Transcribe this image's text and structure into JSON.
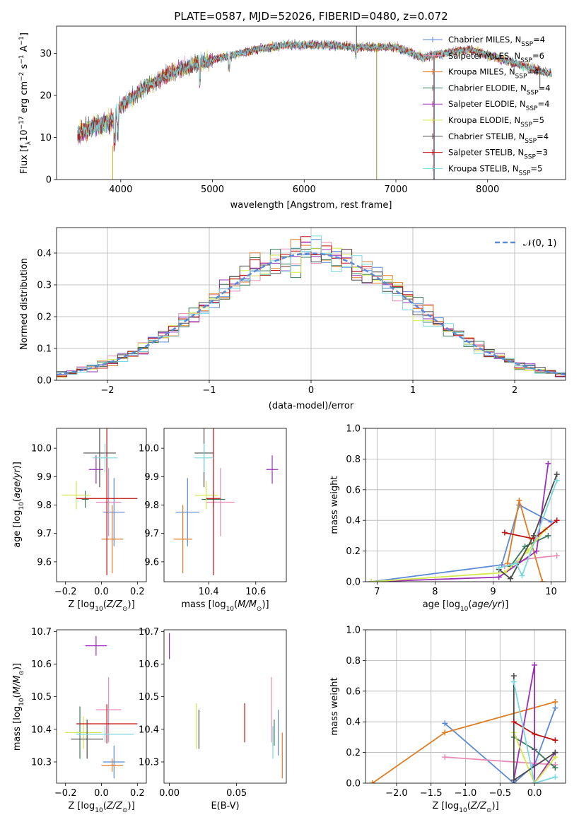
{
  "chart_data": [
    {
      "id": "spectrum",
      "type": "line",
      "title": "PLATE=0587, MJD=52026, FIBERID=0480, z=0.072",
      "xlabel": "wavelength [Angstrom, rest frame]",
      "ylabel": "Flux [fλ10⁻¹⁷ erg cm⁻² s⁻¹ A⁻¹]",
      "xlim": [
        3300,
        8850
      ],
      "ylim": [
        0,
        36.5
      ],
      "xticks": [
        4000,
        5000,
        6000,
        7000,
        8000
      ],
      "yticks": [
        0,
        10,
        20,
        30
      ],
      "legend_position": "top-right",
      "continuum": [
        [
          3530,
          11
        ],
        [
          3700,
          12.5
        ],
        [
          3900,
          14
        ],
        [
          4000,
          17.5
        ],
        [
          4200,
          21
        ],
        [
          4500,
          25
        ],
        [
          4800,
          27.5
        ],
        [
          5000,
          28.5
        ],
        [
          5200,
          29.5
        ],
        [
          5500,
          31
        ],
        [
          5800,
          32
        ],
        [
          6000,
          32
        ],
        [
          6300,
          32
        ],
        [
          6600,
          31.5
        ],
        [
          7000,
          31.5
        ],
        [
          7300,
          29
        ],
        [
          7500,
          30
        ],
        [
          7800,
          31
        ],
        [
          8100,
          29
        ],
        [
          8400,
          27
        ],
        [
          8700,
          25
        ]
      ],
      "series": [
        {
          "name": "Chabrier MILES, N_SSP=4",
          "color": "#5b8ad6"
        },
        {
          "name": "Salpeter MILES, N_SSP=6",
          "color": "#e88ab5"
        },
        {
          "name": "Kroupa MILES, N_SSP=4",
          "color": "#e07b20"
        },
        {
          "name": "Chabrier ELODIE, N_SSP=4",
          "color": "#3a7a5a"
        },
        {
          "name": "Salpeter ELODIE, N_SSP=4",
          "color": "#9a30b8"
        },
        {
          "name": "Kroupa ELODIE, N_SSP=5",
          "color": "#d4e84a"
        },
        {
          "name": "Chabrier STELIB, N_SSP=4",
          "color": "#4a4a4a"
        },
        {
          "name": "Salpeter STELIB, N_SSP=3",
          "color": "#c01010"
        },
        {
          "name": "Kroupa STELIB, N_SSP=5",
          "color": "#7ad8e0"
        }
      ]
    },
    {
      "id": "residuals",
      "type": "line",
      "xlabel": "(data-model)/error",
      "ylabel": "Normed distribution",
      "xlim": [
        -2.5,
        2.5
      ],
      "ylim": [
        0,
        0.48
      ],
      "xticks": [
        -2,
        -1,
        0,
        1,
        2
      ],
      "yticks": [
        0.0,
        0.1,
        0.2,
        0.3,
        0.4
      ],
      "grid": true,
      "legend_position": "top-right",
      "gaussian": {
        "name": "N(0,1)",
        "mean": 0,
        "sigma": 1,
        "color": "#5b8ad6"
      }
    },
    {
      "id": "age-vs-Z",
      "type": "scatter",
      "xlabel": "Z [log10(Z/Z⊙)]",
      "ylabel": "age [log10(age/yr)]",
      "xlim": [
        -0.25,
        0.25
      ],
      "ylim": [
        9.53,
        10.07
      ],
      "xticks": [
        -0.2,
        0.0,
        0.2
      ],
      "yticks": [
        9.6,
        9.7,
        9.8,
        9.9,
        10.0
      ],
      "points": [
        {
          "x": 0.07,
          "y": 9.775,
          "xerr": 0.06,
          "yerr": 0.12,
          "color": "#5b8ad6"
        },
        {
          "x": 0.04,
          "y": 9.81,
          "xerr": 0.07,
          "yerr": 0.12,
          "color": "#e88ab5"
        },
        {
          "x": 0.06,
          "y": 9.68,
          "xerr": 0.06,
          "yerr": 0.12,
          "color": "#e07b20"
        },
        {
          "x": -0.09,
          "y": 9.82,
          "xerr": 0.02,
          "yerr": 0.03,
          "color": "#3a7a5a"
        },
        {
          "x": -0.03,
          "y": 9.925,
          "xerr": 0.04,
          "yerr": 0.05,
          "color": "#9a30b8"
        },
        {
          "x": -0.14,
          "y": 9.835,
          "xerr": 0.08,
          "yerr": 0.05,
          "color": "#d4e84a"
        },
        {
          "x": -0.01,
          "y": 9.983,
          "xerr": 0.09,
          "yerr": 0.12,
          "color": "#4a4a4a"
        },
        {
          "x": 0.03,
          "y": 9.823,
          "xerr": 0.17,
          "yerr": 0.27,
          "color": "#c01010"
        },
        {
          "x": 0.02,
          "y": 9.966,
          "xerr": 0.07,
          "yerr": 0.05,
          "color": "#7ad8e0"
        }
      ]
    },
    {
      "id": "age-vs-mass",
      "type": "scatter",
      "xlabel": "mass [log10(M/M⊙)]",
      "ylabel": "",
      "xlim": [
        10.21,
        10.73
      ],
      "ylim": [
        9.53,
        10.07
      ],
      "xticks": [
        10.4,
        10.6
      ],
      "yticks": [
        9.6,
        9.7,
        9.8,
        9.9,
        10.0
      ],
      "points": [
        {
          "x": 10.31,
          "y": 9.775,
          "xerr": 0.05,
          "yerr": 0.12,
          "color": "#5b8ad6"
        },
        {
          "x": 10.45,
          "y": 9.81,
          "xerr": 0.06,
          "yerr": 0.12,
          "color": "#e88ab5"
        },
        {
          "x": 10.29,
          "y": 9.68,
          "xerr": 0.04,
          "yerr": 0.12,
          "color": "#e07b20"
        },
        {
          "x": 10.42,
          "y": 9.82,
          "xerr": 0.05,
          "yerr": 0.03,
          "color": "#3a7a5a"
        },
        {
          "x": 10.67,
          "y": 9.925,
          "xerr": 0.025,
          "yerr": 0.05,
          "color": "#9a30b8"
        },
        {
          "x": 10.39,
          "y": 9.835,
          "xerr": 0.05,
          "yerr": 0.05,
          "color": "#d4e84a"
        },
        {
          "x": 10.38,
          "y": 9.983,
          "xerr": 0.04,
          "yerr": 0.12,
          "color": "#4a4a4a"
        },
        {
          "x": 10.42,
          "y": 9.823,
          "xerr": 0.03,
          "yerr": 0.27,
          "color": "#c01010"
        },
        {
          "x": 10.38,
          "y": 9.966,
          "xerr": 0.04,
          "yerr": 0.05,
          "color": "#7ad8e0"
        }
      ]
    },
    {
      "id": "mass-weight-vs-age",
      "type": "line",
      "xlabel": "age [log10(age/yr)]",
      "ylabel": "mass weight",
      "xlim": [
        6.8,
        10.25
      ],
      "ylim": [
        0,
        1.0
      ],
      "xticks": [
        7,
        8,
        9,
        10
      ],
      "yticks": [
        0.0,
        0.2,
        0.4,
        0.6,
        0.8,
        1.0
      ],
      "grid": true,
      "series": [
        {
          "color": "#5b8ad6",
          "points": [
            [
              6.9,
              0.0
            ],
            [
              9.15,
              0.11
            ],
            [
              9.45,
              0.5
            ],
            [
              10.0,
              0.39
            ]
          ]
        },
        {
          "color": "#e88ab5",
          "points": [
            [
              9.2,
              0.1
            ],
            [
              9.6,
              0.15
            ],
            [
              10.1,
              0.17
            ]
          ]
        },
        {
          "color": "#e07b20",
          "points": [
            [
              9.25,
              0.12
            ],
            [
              9.45,
              0.53
            ],
            [
              9.85,
              0.0
            ]
          ]
        },
        {
          "color": "#3a7a5a",
          "points": [
            [
              9.3,
              0.1
            ],
            [
              9.55,
              0.23
            ],
            [
              9.95,
              0.3
            ]
          ]
        },
        {
          "color": "#9a30b8",
          "points": [
            [
              6.9,
              0.0
            ],
            [
              9.1,
              0.03
            ],
            [
              9.75,
              0.2
            ],
            [
              9.95,
              0.77
            ]
          ]
        },
        {
          "color": "#d4e84a",
          "points": [
            [
              6.9,
              0.0
            ],
            [
              9.2,
              0.06
            ],
            [
              9.6,
              0.2
            ],
            [
              9.9,
              0.34
            ]
          ]
        },
        {
          "color": "#4a4a4a",
          "points": [
            [
              9.1,
              0.08
            ],
            [
              9.3,
              0.02
            ],
            [
              9.7,
              0.3
            ],
            [
              10.1,
              0.7
            ]
          ]
        },
        {
          "color": "#c01010",
          "points": [
            [
              9.2,
              0.32
            ],
            [
              9.7,
              0.28
            ],
            [
              10.1,
              0.4
            ]
          ]
        },
        {
          "color": "#7ad8e0",
          "points": [
            [
              9.1,
              0.09
            ],
            [
              9.4,
              0.12
            ],
            [
              9.5,
              0.04
            ],
            [
              10.1,
              0.66
            ]
          ]
        }
      ]
    },
    {
      "id": "mass-vs-Z",
      "type": "scatter",
      "xlabel": "Z [log10(Z/Z⊙)]",
      "ylabel": "mass [log10(M/M⊙)]",
      "xlim": [
        -0.25,
        0.25
      ],
      "ylim": [
        10.235,
        10.705
      ],
      "xticks": [
        -0.2,
        0.0,
        0.2
      ],
      "yticks": [
        10.3,
        10.4,
        10.5,
        10.6,
        10.7
      ],
      "points": [
        {
          "x": 0.07,
          "y": 10.3,
          "xerr": 0.06,
          "yerr": 0.05,
          "color": "#5b8ad6"
        },
        {
          "x": 0.04,
          "y": 10.46,
          "xerr": 0.07,
          "yerr": 0.1,
          "color": "#e88ab5"
        },
        {
          "x": 0.06,
          "y": 10.29,
          "xerr": 0.06,
          "yerr": 0.02,
          "color": "#e07b20"
        },
        {
          "x": -0.12,
          "y": 10.39,
          "xerr": 0.02,
          "yerr": 0.08,
          "color": "#3a7a5a"
        },
        {
          "x": -0.03,
          "y": 10.656,
          "xerr": 0.06,
          "yerr": 0.03,
          "color": "#9a30b8"
        },
        {
          "x": -0.1,
          "y": 10.39,
          "xerr": 0.1,
          "yerr": 0.05,
          "color": "#d4e84a"
        },
        {
          "x": -0.08,
          "y": 10.37,
          "xerr": 0.09,
          "yerr": 0.06,
          "color": "#4a4a4a"
        },
        {
          "x": 0.03,
          "y": 10.417,
          "xerr": 0.17,
          "yerr": 0.06,
          "color": "#c01010"
        },
        {
          "x": 0.02,
          "y": 10.385,
          "xerr": 0.16,
          "yerr": 0.025,
          "color": "#7ad8e0"
        }
      ]
    },
    {
      "id": "mass-vs-ebv",
      "type": "scatter",
      "xlabel": "E(B-V)",
      "ylabel": "",
      "xlim": [
        -0.004,
        0.087
      ],
      "ylim": [
        10.235,
        10.705
      ],
      "xticks": [
        0.0,
        0.05
      ],
      "yticks": [
        10.3,
        10.4,
        10.5,
        10.6,
        10.7
      ],
      "points": [
        {
          "x": 0.081,
          "y": 10.39,
          "xerr": 0,
          "yerr": 0.07,
          "color": "#5b8ad6"
        },
        {
          "x": 0.076,
          "y": 10.46,
          "xerr": 0,
          "yerr": 0.1,
          "color": "#e88ab5"
        },
        {
          "x": 0.084,
          "y": 10.32,
          "xerr": 0,
          "yerr": 0.07,
          "color": "#e07b20"
        },
        {
          "x": 0.078,
          "y": 10.39,
          "xerr": 0,
          "yerr": 0.04,
          "color": "#3a7a5a"
        },
        {
          "x": 0.0,
          "y": 10.655,
          "xerr": 0,
          "yerr": 0.04,
          "color": "#9a30b8"
        },
        {
          "x": 0.02,
          "y": 10.41,
          "xerr": 0,
          "yerr": 0.07,
          "color": "#d4e84a"
        },
        {
          "x": 0.022,
          "y": 10.4,
          "xerr": 0,
          "yerr": 0.06,
          "color": "#4a4a4a"
        },
        {
          "x": 0.056,
          "y": 10.42,
          "xerr": 0,
          "yerr": 0.06,
          "color": "#c01010"
        },
        {
          "x": 0.077,
          "y": 10.36,
          "xerr": 0,
          "yerr": 0.05,
          "color": "#7ad8e0"
        }
      ]
    },
    {
      "id": "mass-weight-vs-Z",
      "type": "line",
      "xlabel": "Z [log10(Z/Z⊙)]",
      "ylabel": "mass weight",
      "xlim": [
        -2.45,
        0.45
      ],
      "ylim": [
        0,
        1.0
      ],
      "xticks": [
        -2.0,
        -1.5,
        -1.0,
        -0.5,
        0.0
      ],
      "yticks": [
        0.0,
        0.2,
        0.4,
        0.6,
        0.8,
        1.0
      ],
      "grid": true,
      "series": [
        {
          "color": "#5b8ad6",
          "points": [
            [
              -1.3,
              0.39
            ],
            [
              -0.3,
              0.0
            ],
            [
              0.0,
              0.12
            ],
            [
              0.3,
              0.49
            ]
          ]
        },
        {
          "color": "#e88ab5",
          "points": [
            [
              -1.3,
              0.17
            ],
            [
              0.3,
              0.12
            ]
          ]
        },
        {
          "color": "#e07b20",
          "points": [
            [
              -2.35,
              0.0
            ],
            [
              -1.3,
              0.33
            ],
            [
              0.3,
              0.53
            ]
          ]
        },
        {
          "color": "#3a7a5a",
          "points": [
            [
              -0.3,
              0.3
            ],
            [
              0.0,
              0.22
            ],
            [
              0.3,
              0.1
            ]
          ]
        },
        {
          "color": "#9a30b8",
          "points": [
            [
              -0.3,
              0.02
            ],
            [
              0.0,
              0.77
            ],
            [
              0.0,
              0.0
            ],
            [
              0.3,
              0.2
            ]
          ]
        },
        {
          "color": "#d4e84a",
          "points": [
            [
              -0.3,
              0.33
            ],
            [
              0.0,
              0.0
            ],
            [
              0.3,
              0.17
            ]
          ]
        },
        {
          "color": "#4a4a4a",
          "points": [
            [
              -0.3,
              0.7
            ],
            [
              -0.3,
              0.02
            ],
            [
              0.3,
              0.2
            ]
          ]
        },
        {
          "color": "#c01010",
          "points": [
            [
              -0.3,
              0.4
            ],
            [
              0.0,
              0.32
            ],
            [
              0.3,
              0.28
            ]
          ]
        },
        {
          "color": "#7ad8e0",
          "points": [
            [
              -0.3,
              0.66
            ],
            [
              0.0,
              0.0
            ],
            [
              0.3,
              0.04
            ]
          ]
        }
      ]
    }
  ]
}
